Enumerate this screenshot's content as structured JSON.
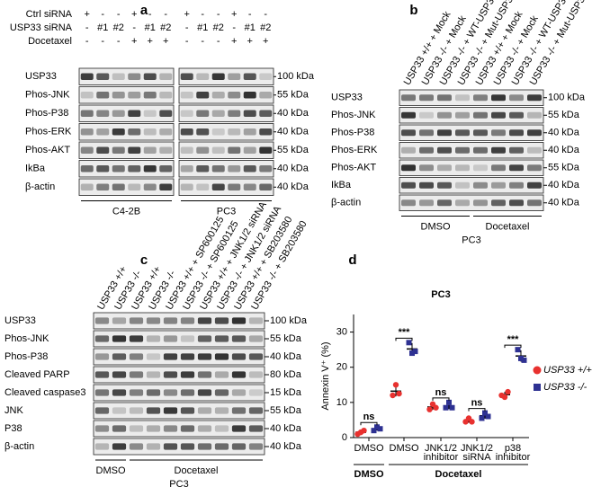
{
  "panel_a": {
    "label": "a",
    "header_rows": [
      {
        "label": "Ctrl siRNA",
        "lanes": [
          "+",
          "-",
          "-",
          "+",
          "-",
          "-",
          "+",
          "-",
          "-",
          "+",
          "-",
          "-"
        ]
      },
      {
        "label": "USP33 siRNA",
        "lanes": [
          "-",
          "#1",
          "#2",
          "-",
          "#1",
          "#2",
          "-",
          "#1",
          "#2",
          "-",
          "#1",
          "#2"
        ]
      },
      {
        "label": "Docetaxel",
        "lanes": [
          "-",
          "-",
          "-",
          "+",
          "+",
          "+",
          "-",
          "-",
          "-",
          "+",
          "+",
          "+"
        ]
      }
    ],
    "blots": [
      {
        "name": "USP33",
        "size": "100 kDa"
      },
      {
        "name": "Phos-JNK",
        "size": "55 kDa"
      },
      {
        "name": "Phos-P38",
        "size": "40 kDa"
      },
      {
        "name": "Phos-ERK",
        "size": "40 kDa"
      },
      {
        "name": "Phos-AKT",
        "size": "55 kDa"
      },
      {
        "name": "IkBa",
        "size": "40 kDa"
      },
      {
        "name": "β-actin",
        "size": "40 kDa"
      }
    ],
    "groups": [
      "C4-2B",
      "PC3"
    ]
  },
  "panel_b": {
    "label": "b",
    "lanes": [
      "USP33 +/+ + Mock",
      "USP33 -/- + Mock",
      "USP33 -/- + WT-USP33",
      "USP33 -/- + Mut-USP33",
      "USP33 +/+ + Mock",
      "USP33 -/- + Mock",
      "USP33 -/- + WT-USP33",
      "USP33 -/- + Mut-USP33"
    ],
    "blots": [
      {
        "name": "USP33",
        "size": "100 kDa"
      },
      {
        "name": "Phos-JNK",
        "size": "55 kDa"
      },
      {
        "name": "Phos-P38",
        "size": "40 kDa"
      },
      {
        "name": "Phos-ERK",
        "size": "40 kDa"
      },
      {
        "name": "Phos-AKT",
        "size": "55 kDa"
      },
      {
        "name": "IkBa",
        "size": "40 kDa"
      },
      {
        "name": "β-actin",
        "size": "40 kDa"
      }
    ],
    "groups": [
      "DMSO",
      "Docetaxel"
    ],
    "cell_line": "PC3"
  },
  "panel_c": {
    "label": "c",
    "lanes": [
      "USP33 +/+",
      "USP33 -/-",
      "USP33 +/+",
      "USP33 -/-",
      "USP33 +/+ + SP600125",
      "USP33 -/- + SP600125",
      "USP33 +/+ + JNK1/2 siRNA",
      "USP33 -/- + JNK1/2 siRNA",
      "USP33 +/+ + SB203580",
      "USP33 -/- + SB203580"
    ],
    "blots": [
      {
        "name": "USP33",
        "size": "100 kDa"
      },
      {
        "name": "Phos-JNK",
        "size": "55 kDa"
      },
      {
        "name": "Phos-P38",
        "size": "40 kDa"
      },
      {
        "name": "Cleaved PARP",
        "size": "80 kDa"
      },
      {
        "name": "Cleaved caspase3",
        "size": "15 kDa"
      },
      {
        "name": "JNK",
        "size": "55 kDa"
      },
      {
        "name": "P38",
        "size": "40 kDa"
      },
      {
        "name": "β-actin",
        "size": "40 kDa"
      }
    ],
    "groups": [
      "DMSO",
      "Docetaxel"
    ],
    "cell_line": "PC3"
  },
  "chart_data": {
    "type": "scatter",
    "panel_label": "d",
    "title": "PC3",
    "y_label": "Annexin V⁺ (%)",
    "categories": [
      "DMSO",
      "DMSO",
      "JNK1/2 inhibitor",
      "JNK1/2 siRNA",
      "p38 inhibitor"
    ],
    "groups": [
      "DMSO",
      "Docetaxel"
    ],
    "significance": [
      "ns",
      "***",
      "ns",
      "ns",
      "***"
    ],
    "ylim": [
      0,
      35
    ],
    "yticks": [
      0,
      10,
      20,
      30
    ],
    "series": [
      {
        "name": "USP33 +/+",
        "color": "#e8312f",
        "marker": "circle",
        "values": [
          1.5,
          13.2,
          8.7,
          4.8,
          12.2
        ],
        "errors": [
          0.5,
          1.5,
          0.8,
          0.6,
          0.8
        ],
        "replicates": [
          [
            1,
            1.5,
            2
          ],
          [
            12,
            15,
            12.5
          ],
          [
            8,
            9.5,
            8.5
          ],
          [
            4.5,
            5.5,
            4.5
          ],
          [
            12,
            11.5,
            13
          ]
        ]
      },
      {
        "name": "USP33 -/-",
        "color": "#2e3192",
        "marker": "square",
        "values": [
          2.5,
          25.2,
          9,
          6.2,
          23.2
        ],
        "errors": [
          0.5,
          1.7,
          0.9,
          0.8,
          1.6
        ],
        "replicates": [
          [
            2,
            3,
            2.5
          ],
          [
            27,
            24,
            24.5
          ],
          [
            8.5,
            10,
            8.5
          ],
          [
            5.5,
            7,
            6
          ],
          [
            25,
            22.5,
            22
          ]
        ]
      }
    ]
  }
}
